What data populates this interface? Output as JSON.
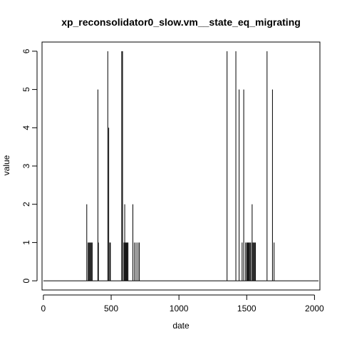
{
  "chart_data": {
    "type": "bar",
    "style": "histogram-spikes",
    "title": "xp_reconsolidator0_slow.vm__state_eq_migrating",
    "xlabel": "date",
    "ylabel": "value",
    "xlim": [
      -10,
      2040
    ],
    "ylim": [
      -0.24,
      6.24
    ],
    "x_ticks": [
      0,
      500,
      1000,
      1500,
      2000
    ],
    "x_tick_labels": [
      "0",
      "500",
      "1000",
      "1500",
      "2000"
    ],
    "y_ticks": [
      0,
      1,
      2,
      3,
      4,
      5,
      6
    ],
    "y_tick_labels": [
      "0",
      "1",
      "2",
      "3",
      "4",
      "5",
      "6"
    ],
    "baseline": {
      "from": 0,
      "to": 2030,
      "value": 0
    },
    "grid": false,
    "points": [
      [
        320,
        2
      ],
      [
        330,
        1
      ],
      [
        336,
        1
      ],
      [
        342,
        1
      ],
      [
        348,
        1
      ],
      [
        354,
        1
      ],
      [
        360,
        1
      ],
      [
        402,
        5
      ],
      [
        406,
        1
      ],
      [
        475,
        6
      ],
      [
        482,
        4
      ],
      [
        490,
        1
      ],
      [
        494,
        1
      ],
      [
        578,
        6
      ],
      [
        584,
        6
      ],
      [
        594,
        1
      ],
      [
        600,
        2
      ],
      [
        604,
        1
      ],
      [
        610,
        1
      ],
      [
        614,
        1
      ],
      [
        620,
        1
      ],
      [
        624,
        1
      ],
      [
        660,
        2
      ],
      [
        672,
        1
      ],
      [
        684,
        1
      ],
      [
        698,
        1
      ],
      [
        708,
        1
      ],
      [
        1355,
        6
      ],
      [
        1420,
        6
      ],
      [
        1444,
        5
      ],
      [
        1466,
        1
      ],
      [
        1478,
        5
      ],
      [
        1492,
        1
      ],
      [
        1500,
        1
      ],
      [
        1506,
        1
      ],
      [
        1512,
        1
      ],
      [
        1518,
        1
      ],
      [
        1524,
        1
      ],
      [
        1530,
        1
      ],
      [
        1540,
        2
      ],
      [
        1546,
        1
      ],
      [
        1552,
        1
      ],
      [
        1558,
        1
      ],
      [
        1564,
        1
      ],
      [
        1650,
        6
      ],
      [
        1690,
        5
      ],
      [
        1702,
        1
      ]
    ]
  }
}
